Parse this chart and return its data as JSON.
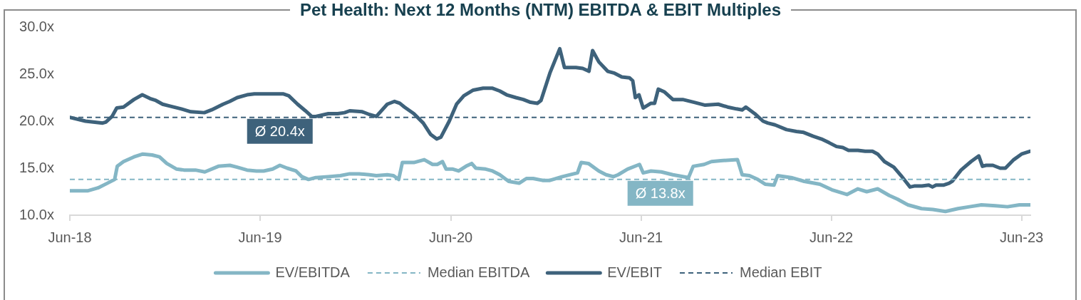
{
  "chart_data": {
    "type": "line",
    "title": "Pet Health: Next 12 Months (NTM) EBITDA & EBIT Multiples",
    "xlim": [
      "2018-06-30",
      "2023-07-17"
    ],
    "xticks": [
      {
        "value": "2018-06-30",
        "label": "Jun-18"
      },
      {
        "value": "2019-06-30",
        "label": "Jun-19"
      },
      {
        "value": "2020-06-30",
        "label": "Jun-20"
      },
      {
        "value": "2021-06-30",
        "label": "Jun-21"
      },
      {
        "value": "2022-06-30",
        "label": "Jun-22"
      },
      {
        "value": "2023-06-30",
        "label": "Jun-23"
      }
    ],
    "ylim": [
      10,
      30
    ],
    "yticks": [
      {
        "value": 10,
        "label": "10.0x"
      },
      {
        "value": 15,
        "label": "15.0x"
      },
      {
        "value": 20,
        "label": "20.0x"
      },
      {
        "value": 25,
        "label": "25.0x"
      },
      {
        "value": 30,
        "label": "30.0x"
      }
    ],
    "grid": false,
    "legend": "bottom",
    "series": [
      {
        "name": "EV/EBITDA",
        "color": "#84b6c5",
        "x": [
          "2018-06-30",
          "2018-08-04",
          "2018-08-23",
          "2018-09-10",
          "2018-09-24",
          "2018-09-29",
          "2018-10-11",
          "2018-10-31",
          "2018-11-17",
          "2018-12-05",
          "2018-12-19",
          "2019-01-02",
          "2019-01-21",
          "2019-02-04",
          "2019-02-26",
          "2019-03-16",
          "2019-04-11",
          "2019-05-03",
          "2019-05-17",
          "2019-06-05",
          "2019-06-23",
          "2019-07-07",
          "2019-07-24",
          "2019-08-07",
          "2019-08-21",
          "2019-09-07",
          "2019-09-18",
          "2019-10-01",
          "2019-10-15",
          "2019-11-08",
          "2019-12-01",
          "2019-12-19",
          "2020-01-06",
          "2020-01-26",
          "2020-02-08",
          "2020-02-29",
          "2020-03-12",
          "2020-03-22",
          "2020-03-29",
          "2020-04-20",
          "2020-05-10",
          "2020-05-26",
          "2020-06-04",
          "2020-06-14",
          "2020-06-21",
          "2020-07-04",
          "2020-07-15",
          "2020-07-29",
          "2020-08-09",
          "2020-08-17",
          "2020-09-05",
          "2020-09-18",
          "2020-10-02",
          "2020-10-19",
          "2020-11-08",
          "2020-11-22",
          "2020-12-05",
          "2020-12-23",
          "2021-01-06",
          "2021-01-30",
          "2021-02-28",
          "2021-03-07",
          "2021-03-21",
          "2021-04-10",
          "2021-04-24",
          "2021-05-08",
          "2021-05-17",
          "2021-06-04",
          "2021-06-27",
          "2021-07-04",
          "2021-07-19",
          "2021-08-08",
          "2021-08-30",
          "2021-09-29",
          "2021-10-08",
          "2021-10-29",
          "2021-11-12",
          "2021-11-30",
          "2022-01-01",
          "2022-01-10",
          "2022-01-24",
          "2022-02-09",
          "2022-02-23",
          "2022-03-12",
          "2022-03-19",
          "2022-04-14",
          "2022-05-09",
          "2022-06-08",
          "2022-07-01",
          "2022-07-30",
          "2022-08-20",
          "2022-09-06",
          "2022-09-27",
          "2022-10-19",
          "2022-11-04",
          "2022-11-24",
          "2022-12-20",
          "2023-01-11",
          "2023-02-04",
          "2023-02-28",
          "2023-03-22",
          "2023-04-14",
          "2023-05-11",
          "2023-06-03",
          "2023-06-26",
          "2023-07-17"
        ],
        "values": [
          12.6,
          12.6,
          12.9,
          13.4,
          13.8,
          15.2,
          15.7,
          16.2,
          16.5,
          16.4,
          16.2,
          15.5,
          14.9,
          14.8,
          14.8,
          14.6,
          15.2,
          15.3,
          15.1,
          14.8,
          14.7,
          14.7,
          14.9,
          15.3,
          15.0,
          14.7,
          14.1,
          13.8,
          14.0,
          14.1,
          14.2,
          14.4,
          14.4,
          14.3,
          14.2,
          14.3,
          14.2,
          13.8,
          15.6,
          15.6,
          15.9,
          15.4,
          15.4,
          15.7,
          14.9,
          14.9,
          14.7,
          15.2,
          15.5,
          15.0,
          14.9,
          14.7,
          14.3,
          13.6,
          13.4,
          13.9,
          13.9,
          13.7,
          13.7,
          14.1,
          14.5,
          15.6,
          15.5,
          14.7,
          14.3,
          14.1,
          14.3,
          14.9,
          15.4,
          14.5,
          14.7,
          14.6,
          14.3,
          14.0,
          15.2,
          15.4,
          15.7,
          15.8,
          15.9,
          14.3,
          14.2,
          13.8,
          13.3,
          13.2,
          14.2,
          14.0,
          13.6,
          13.3,
          12.7,
          12.2,
          12.8,
          12.5,
          12.8,
          12.1,
          11.7,
          11.1,
          10.7,
          10.6,
          10.4,
          10.7,
          10.9,
          11.1,
          11.0,
          10.9,
          11.1,
          11.1
        ]
      },
      {
        "name": "Median EBITDA",
        "color": "#84b6c5",
        "line_style": "dashed",
        "x": [
          "2018-06-30",
          "2023-07-17"
        ],
        "values": [
          13.8,
          13.8
        ]
      },
      {
        "name": "EV/EBIT",
        "color": "#3e627b",
        "x": [
          "2018-06-30",
          "2018-07-30",
          "2018-09-01",
          "2018-09-07",
          "2018-09-19",
          "2018-09-28",
          "2018-10-11",
          "2018-10-31",
          "2018-11-16",
          "2018-12-01",
          "2018-12-12",
          "2018-12-25",
          "2019-01-08",
          "2019-01-30",
          "2019-02-17",
          "2019-03-15",
          "2019-03-29",
          "2019-04-20",
          "2019-05-03",
          "2019-05-17",
          "2019-06-05",
          "2019-06-19",
          "2019-07-16",
          "2019-08-13",
          "2019-08-24",
          "2019-09-10",
          "2019-09-25",
          "2019-10-07",
          "2019-10-15",
          "2019-11-08",
          "2019-11-26",
          "2019-12-09",
          "2019-12-19",
          "2020-01-12",
          "2020-01-26",
          "2020-02-08",
          "2020-02-29",
          "2020-03-14",
          "2020-03-24",
          "2020-04-02",
          "2020-04-20",
          "2020-05-08",
          "2020-05-22",
          "2020-06-03",
          "2020-06-11",
          "2020-06-27",
          "2020-07-11",
          "2020-07-25",
          "2020-08-12",
          "2020-08-31",
          "2020-09-18",
          "2020-10-02",
          "2020-10-15",
          "2020-11-02",
          "2020-11-16",
          "2020-11-30",
          "2020-12-13",
          "2020-12-20",
          "2021-01-06",
          "2021-01-25",
          "2021-02-03",
          "2021-02-25",
          "2021-03-10",
          "2021-03-22",
          "2021-03-29",
          "2021-04-10",
          "2021-04-27",
          "2021-05-10",
          "2021-05-24",
          "2021-06-08",
          "2021-06-14",
          "2021-06-19",
          "2021-06-26",
          "2021-07-04",
          "2021-07-19",
          "2021-07-26",
          "2021-08-02",
          "2021-08-14",
          "2021-08-30",
          "2021-09-18",
          "2021-10-10",
          "2021-10-31",
          "2021-11-25",
          "2021-12-13",
          "2021-12-30",
          "2022-01-10",
          "2022-01-17",
          "2022-02-03",
          "2022-02-19",
          "2022-02-28",
          "2022-03-14",
          "2022-04-05",
          "2022-04-24",
          "2022-05-08",
          "2022-05-26",
          "2022-06-11",
          "2022-06-26",
          "2022-07-10",
          "2022-07-22",
          "2022-08-02",
          "2022-08-20",
          "2022-09-03",
          "2022-09-17",
          "2022-09-27",
          "2022-10-10",
          "2022-10-28",
          "2022-11-11",
          "2022-11-28",
          "2022-12-06",
          "2022-12-21",
          "2023-01-03",
          "2023-01-10",
          "2023-01-17",
          "2023-01-31",
          "2023-02-11",
          "2023-02-17",
          "2023-03-06",
          "2023-03-25",
          "2023-04-09",
          "2023-04-16",
          "2023-04-23",
          "2023-05-06",
          "2023-05-20",
          "2023-05-30",
          "2023-06-15",
          "2023-06-30",
          "2023-07-17"
        ],
        "values": [
          20.4,
          20.0,
          19.8,
          19.9,
          20.5,
          21.4,
          21.5,
          22.3,
          22.8,
          22.4,
          22.2,
          21.8,
          21.6,
          21.3,
          21.0,
          20.9,
          21.2,
          21.8,
          22.1,
          22.5,
          22.8,
          22.9,
          22.9,
          22.9,
          22.7,
          21.8,
          21.1,
          20.5,
          20.5,
          20.8,
          20.8,
          20.9,
          21.1,
          21.0,
          20.7,
          20.5,
          21.8,
          22.1,
          21.9,
          21.5,
          20.8,
          19.8,
          18.6,
          18.1,
          18.3,
          20.0,
          21.8,
          22.7,
          23.3,
          23.5,
          23.5,
          23.2,
          22.8,
          22.5,
          22.3,
          22.0,
          21.9,
          22.2,
          25.1,
          27.7,
          25.7,
          25.7,
          25.6,
          25.3,
          27.5,
          26.3,
          25.3,
          25.1,
          24.7,
          24.6,
          24.3,
          22.5,
          22.8,
          21.4,
          21.9,
          21.9,
          23.4,
          23.1,
          22.3,
          22.3,
          22.0,
          21.7,
          21.8,
          21.5,
          21.3,
          21.2,
          21.5,
          20.8,
          20.0,
          19.8,
          19.6,
          19.1,
          18.9,
          18.8,
          18.4,
          18.1,
          17.7,
          17.3,
          17.2,
          16.9,
          16.9,
          16.8,
          16.8,
          16.5,
          15.7,
          15.1,
          14.2,
          13.0,
          13.1,
          13.1,
          13.2,
          13.0,
          13.2,
          13.2,
          13.4,
          13.6,
          14.8,
          15.7,
          16.3,
          15.2,
          15.3,
          15.3,
          15.0,
          15.0,
          15.9,
          16.5,
          16.8
        ]
      },
      {
        "name": "Median EBIT",
        "color": "#3e627b",
        "line_style": "dashed",
        "x": [
          "2018-06-30",
          "2023-07-17"
        ],
        "values": [
          20.4,
          20.4
        ]
      }
    ],
    "annotations": [
      {
        "text": "Ø 20.4x",
        "x": "2019-08-07",
        "y": 20.4
      },
      {
        "text": "Ø 13.8x",
        "x": "2021-08-06",
        "y": 13.8
      }
    ]
  }
}
